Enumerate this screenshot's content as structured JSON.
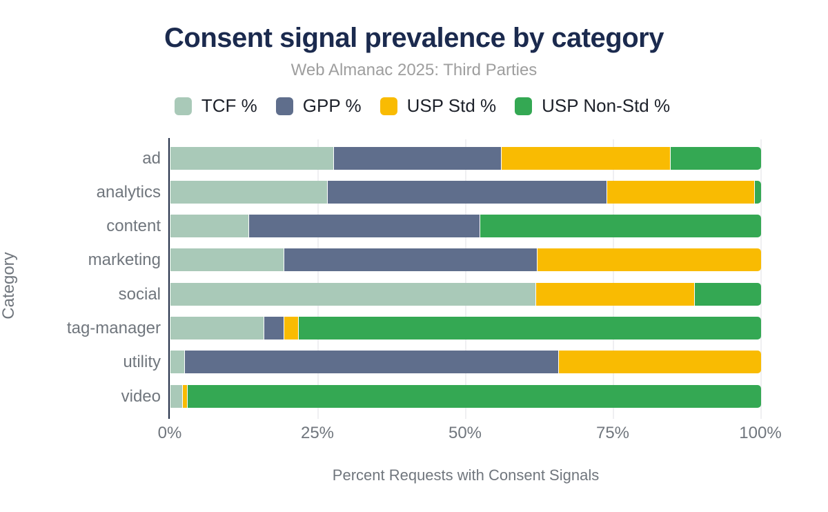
{
  "header": {
    "title": "Consent signal prevalence by category",
    "subtitle": "Web Almanac 2025: Third Parties"
  },
  "axes": {
    "x_label": "Percent Requests with Consent Signals",
    "y_label": "Category",
    "x_tick_labels": [
      "0%",
      "25%",
      "50%",
      "75%",
      "100%"
    ],
    "x_tick_values": [
      0,
      25,
      50,
      75,
      100
    ]
  },
  "colors": {
    "title": "#1b2a4e",
    "subtitle": "#9e9e9e",
    "axis_text": "#70767d",
    "axis_line": "#1f2b44",
    "gridline": "#efeff2",
    "background": "#ffffff"
  },
  "chart_data": {
    "type": "bar",
    "orientation": "horizontal-stacked",
    "title": "Consent signal prevalence by category",
    "subtitle": "Web Almanac 2025: Third Parties",
    "xlabel": "Percent Requests with Consent Signals",
    "ylabel": "Category",
    "xlim": [
      0,
      100
    ],
    "grid": true,
    "legend_position": "top",
    "categories": [
      "ad",
      "analytics",
      "content",
      "marketing",
      "social",
      "tag-manager",
      "utility",
      "video"
    ],
    "series": [
      {
        "name": "TCF %",
        "color": "#a9c9b8",
        "values": [
          27.7,
          26.6,
          13.2,
          19.2,
          62.0,
          15.8,
          2.3,
          2.0
        ]
      },
      {
        "name": "GPP %",
        "color": "#5f6e8c",
        "values": [
          28.3,
          47.4,
          39.2,
          42.9,
          0,
          3.3,
          63.4,
          0
        ]
      },
      {
        "name": "USP Std %",
        "color": "#f9bb02",
        "values": [
          28.6,
          25.0,
          0,
          37.9,
          26.8,
          2.4,
          34.3,
          0.7
        ]
      },
      {
        "name": "USP Non-Std %",
        "color": "#34a853",
        "values": [
          15.4,
          1.0,
          47.6,
          0,
          11.2,
          78.5,
          0,
          97.3
        ]
      }
    ],
    "x_tick_labels": [
      "0%",
      "25%",
      "50%",
      "75%",
      "100%"
    ]
  }
}
